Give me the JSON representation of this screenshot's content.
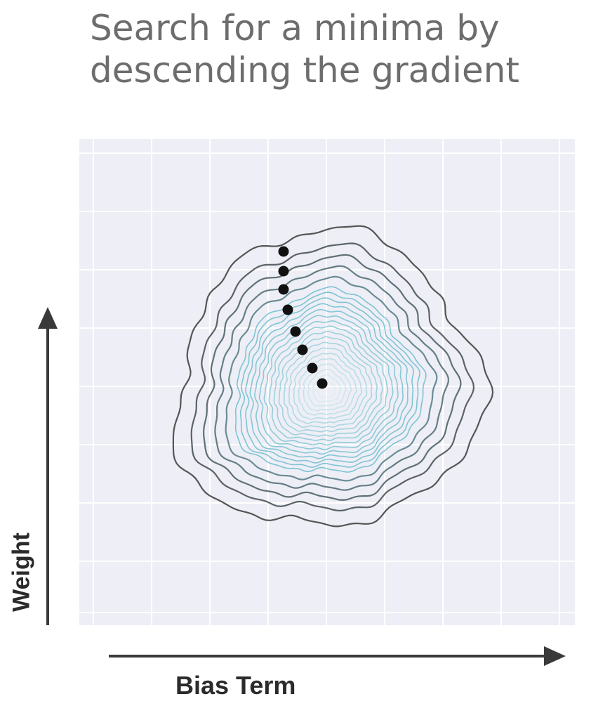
{
  "title": {
    "line1": "Search for a minima by",
    "line2": "descending the gradient"
  },
  "axes": {
    "x_label": "Bias Term",
    "y_label": "Weight",
    "grid": true,
    "background_color": "#eeeef6",
    "grid_color": "#ffffff"
  },
  "contours": {
    "outer_color": "#555555",
    "inner_color": "#7ec3d3",
    "center_color": "#e9f3f4"
  },
  "path": {
    "dot_color": "#111111",
    "steps": 8
  }
}
